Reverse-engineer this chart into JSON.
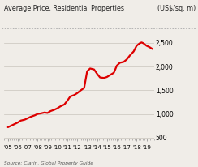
{
  "title_left": "Average Price, Residential Properties",
  "title_right": "(US$/sq. m)",
  "source": "Source: Clarin, Global Property Guide",
  "line_color": "#dd0000",
  "background_color": "#f0ede8",
  "x_labels": [
    "'05",
    "'06",
    "'07",
    "'08",
    "'09",
    "'10",
    "'11",
    "'12",
    "'13",
    "'14",
    "'15",
    "'16",
    "'17",
    "'18",
    "'19"
  ],
  "yticks": [
    500,
    1000,
    1500,
    2000,
    2500
  ],
  "ylim": [
    480,
    2700
  ],
  "xlim": [
    2004.6,
    2019.8
  ],
  "data": {
    "years": [
      2005.0,
      2005.3,
      2005.7,
      2006.0,
      2006.3,
      2006.7,
      2007.0,
      2007.3,
      2007.7,
      2008.0,
      2008.3,
      2008.7,
      2009.0,
      2009.3,
      2009.7,
      2010.0,
      2010.3,
      2010.7,
      2011.0,
      2011.3,
      2011.7,
      2012.0,
      2012.3,
      2012.7,
      2013.0,
      2013.3,
      2013.7,
      2014.0,
      2014.3,
      2014.7,
      2015.0,
      2015.3,
      2015.7,
      2016.0,
      2016.3,
      2016.7,
      2017.0,
      2017.3,
      2017.7,
      2018.0,
      2018.3,
      2018.5,
      2018.7,
      2019.0,
      2019.3,
      2019.6
    ],
    "values": [
      720,
      750,
      790,
      820,
      860,
      880,
      910,
      940,
      970,
      1000,
      1010,
      1030,
      1020,
      1060,
      1090,
      1120,
      1160,
      1200,
      1280,
      1370,
      1400,
      1440,
      1490,
      1550,
      1900,
      1960,
      1940,
      1850,
      1770,
      1760,
      1780,
      1820,
      1870,
      2020,
      2080,
      2100,
      2150,
      2230,
      2320,
      2440,
      2490,
      2510,
      2490,
      2440,
      2410,
      2370
    ]
  }
}
